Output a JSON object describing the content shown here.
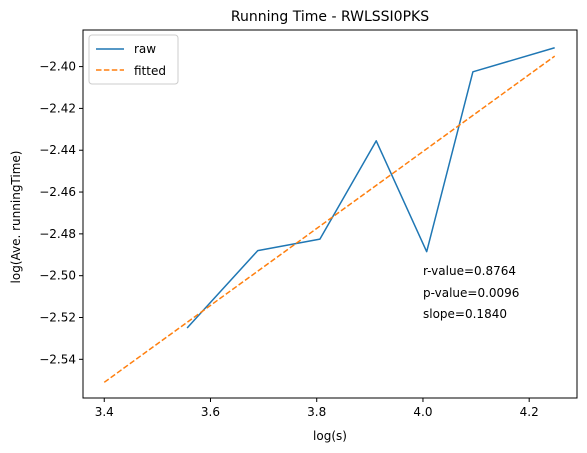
{
  "chart_data": {
    "type": "line",
    "title": "Running Time - RWLSSI0PKS",
    "xlabel": "log(s)",
    "ylabel": "log(Ave. runningTime)",
    "xlim": [
      3.36,
      4.29
    ],
    "ylim": [
      -2.5585,
      -2.3825
    ],
    "xticks": [
      3.4,
      3.6,
      3.8,
      4.0,
      4.2
    ],
    "xtick_labels": [
      "3.4",
      "3.6",
      "3.8",
      "4.0",
      "4.2"
    ],
    "yticks": [
      -2.54,
      -2.52,
      -2.5,
      -2.48,
      -2.46,
      -2.44,
      -2.42,
      -2.4
    ],
    "ytick_labels": [
      "−2.54",
      "−2.52",
      "−2.50",
      "−2.48",
      "−2.46",
      "−2.44",
      "−2.42",
      "−2.40"
    ],
    "grid": false,
    "legend_position": "top-left",
    "series": [
      {
        "name": "raw",
        "style": "solid",
        "color": "#1f77b4",
        "x": [
          3.556,
          3.689,
          3.806,
          3.912,
          4.007,
          4.094,
          4.248
        ],
        "y": [
          -2.525,
          -2.488,
          -2.4825,
          -2.4355,
          -2.4885,
          -2.4025,
          -2.391
        ]
      },
      {
        "name": "fitted",
        "style": "dashed",
        "color": "#ff7f0e",
        "x": [
          3.4,
          4.248
        ],
        "y": [
          -2.551,
          -2.395
        ]
      }
    ],
    "annotations": [
      "r-value=0.8764",
      "p-value=0.0096",
      "slope=0.1840"
    ]
  }
}
